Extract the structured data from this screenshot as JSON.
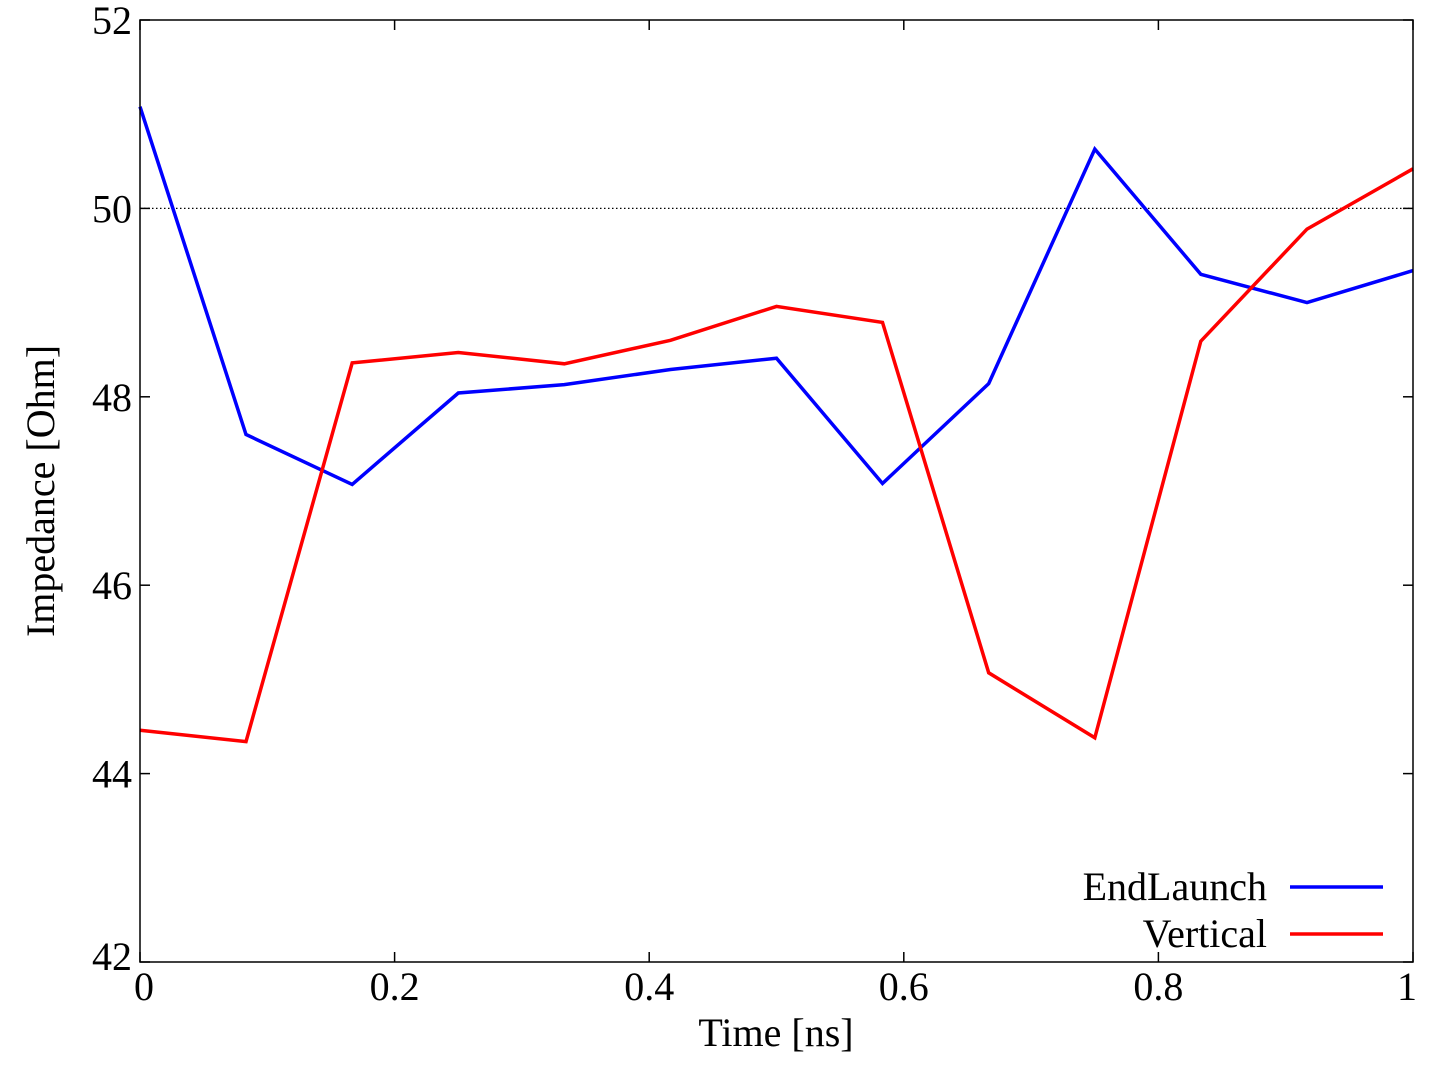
{
  "chart_data": {
    "type": "line",
    "title": "",
    "xlabel": "Time [ns]",
    "ylabel": "Impedance [Ohm]",
    "xlim": [
      0,
      1
    ],
    "ylim": [
      42,
      52
    ],
    "x_ticks": [
      0,
      0.2,
      0.4,
      0.6,
      0.8,
      1
    ],
    "x_tick_labels": [
      "0",
      "0.2",
      "0.4",
      "0.6",
      "0.8",
      "1"
    ],
    "y_ticks": [
      42,
      44,
      46,
      48,
      50,
      52
    ],
    "y_tick_labels": [
      "42",
      "44",
      "46",
      "48",
      "50",
      "52"
    ],
    "grid": false,
    "reference_line": {
      "y": 50,
      "style": "dotted",
      "color": "#000000"
    },
    "legend_position": "bottom-right",
    "series": [
      {
        "name": "EndLaunch",
        "color": "#0000ff",
        "x": [
          0,
          0.0833,
          0.1667,
          0.25,
          0.3333,
          0.4167,
          0.5,
          0.5833,
          0.6667,
          0.75,
          0.8333,
          0.9167,
          1.0
        ],
        "values": [
          51.08,
          47.6,
          47.07,
          48.04,
          48.13,
          48.29,
          48.41,
          47.08,
          48.14,
          50.63,
          49.3,
          49.0,
          49.34
        ]
      },
      {
        "name": "Vertical",
        "color": "#ff0000",
        "x": [
          0,
          0.0833,
          0.1667,
          0.25,
          0.3333,
          0.4167,
          0.5,
          0.5833,
          0.6667,
          0.75,
          0.8333,
          0.9167,
          1.0
        ],
        "values": [
          44.46,
          44.34,
          48.36,
          48.47,
          48.35,
          48.6,
          48.96,
          48.79,
          45.07,
          44.38,
          48.59,
          49.78,
          50.42
        ]
      }
    ]
  }
}
